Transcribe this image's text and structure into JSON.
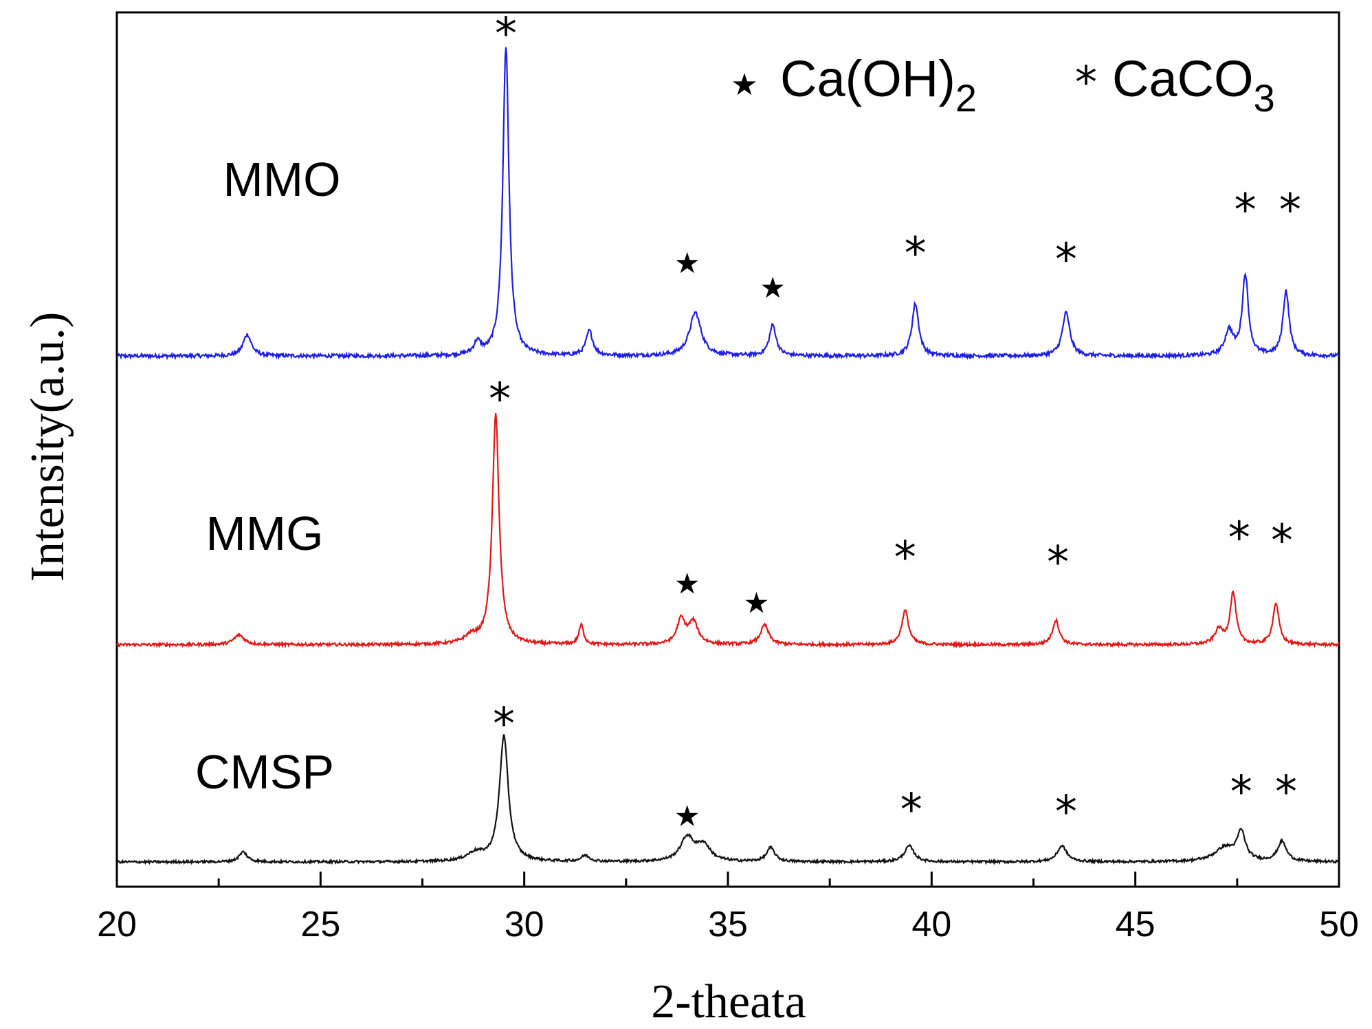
{
  "chart_data": {
    "type": "line",
    "title": "",
    "xlabel": "2-theata",
    "ylabel": "Intensity(a.u.)",
    "xlim": [
      20,
      50
    ],
    "xticks": [
      "20",
      "25",
      "30",
      "35",
      "40",
      "45",
      "50"
    ],
    "legend": [
      {
        "symbol": "★",
        "label": "Ca(OH)",
        "sub": "2",
        "name": "Ca(OH)2"
      },
      {
        "symbol": "*",
        "label": "CaCO",
        "sub": "3",
        "name": "CaCO3"
      }
    ],
    "series": [
      {
        "name": "MMO",
        "color": "#1f1fe0",
        "baseline": 0.0,
        "peaks": [
          {
            "x": 23.2,
            "h": 0.07,
            "w": 0.12
          },
          {
            "x": 28.85,
            "h": 0.04,
            "w": 0.1
          },
          {
            "x": 29.55,
            "h": 1.0,
            "w": 0.09
          },
          {
            "x": 31.6,
            "h": 0.08,
            "w": 0.1
          },
          {
            "x": 34.2,
            "h": 0.14,
            "w": 0.17
          },
          {
            "x": 36.1,
            "h": 0.1,
            "w": 0.1
          },
          {
            "x": 39.6,
            "h": 0.17,
            "w": 0.1
          },
          {
            "x": 43.3,
            "h": 0.14,
            "w": 0.11
          },
          {
            "x": 47.3,
            "h": 0.08,
            "w": 0.12
          },
          {
            "x": 47.7,
            "h": 0.26,
            "w": 0.09
          },
          {
            "x": 48.7,
            "h": 0.21,
            "w": 0.09
          }
        ],
        "markers": [
          {
            "x": 29.55,
            "type": "*",
            "level": 1.06
          },
          {
            "x": 34.0,
            "type": "★",
            "level": 0.3
          },
          {
            "x": 36.1,
            "type": "★",
            "level": 0.22
          },
          {
            "x": 39.6,
            "type": "*",
            "level": 0.35
          },
          {
            "x": 43.3,
            "type": "*",
            "level": 0.33
          },
          {
            "x": 47.7,
            "type": "*",
            "level": 0.49
          },
          {
            "x": 48.8,
            "type": "*",
            "level": 0.49
          }
        ]
      },
      {
        "name": "MMG",
        "color": "#e01818",
        "baseline": 0.0,
        "peaks": [
          {
            "x": 23.0,
            "h": 0.04,
            "w": 0.15
          },
          {
            "x": 28.7,
            "h": 0.03,
            "w": 0.2
          },
          {
            "x": 29.3,
            "h": 0.94,
            "w": 0.1
          },
          {
            "x": 31.4,
            "h": 0.08,
            "w": 0.07
          },
          {
            "x": 33.85,
            "h": 0.1,
            "w": 0.12
          },
          {
            "x": 34.15,
            "h": 0.09,
            "w": 0.14
          },
          {
            "x": 35.9,
            "h": 0.08,
            "w": 0.12
          },
          {
            "x": 39.35,
            "h": 0.14,
            "w": 0.1
          },
          {
            "x": 43.05,
            "h": 0.1,
            "w": 0.1
          },
          {
            "x": 47.05,
            "h": 0.06,
            "w": 0.12
          },
          {
            "x": 47.4,
            "h": 0.21,
            "w": 0.09
          },
          {
            "x": 48.45,
            "h": 0.17,
            "w": 0.09
          }
        ],
        "markers": [
          {
            "x": 29.4,
            "type": "*",
            "level": 1.03
          },
          {
            "x": 34.0,
            "type": "★",
            "level": 0.25
          },
          {
            "x": 35.7,
            "type": "★",
            "level": 0.17
          },
          {
            "x": 39.35,
            "type": "*",
            "level": 0.38
          },
          {
            "x": 43.1,
            "type": "*",
            "level": 0.36
          },
          {
            "x": 47.55,
            "type": "*",
            "level": 0.46
          },
          {
            "x": 48.6,
            "type": "*",
            "level": 0.45
          }
        ]
      },
      {
        "name": "CMSP",
        "color": "#111111",
        "baseline": 0.0,
        "peaks": [
          {
            "x": 23.1,
            "h": 0.05,
            "w": 0.12
          },
          {
            "x": 28.8,
            "h": 0.04,
            "w": 0.25
          },
          {
            "x": 29.5,
            "h": 0.63,
            "w": 0.13
          },
          {
            "x": 31.5,
            "h": 0.03,
            "w": 0.12
          },
          {
            "x": 34.0,
            "h": 0.12,
            "w": 0.2
          },
          {
            "x": 34.4,
            "h": 0.08,
            "w": 0.2
          },
          {
            "x": 36.05,
            "h": 0.07,
            "w": 0.12
          },
          {
            "x": 39.45,
            "h": 0.08,
            "w": 0.14
          },
          {
            "x": 43.2,
            "h": 0.08,
            "w": 0.14
          },
          {
            "x": 47.2,
            "h": 0.07,
            "w": 0.3
          },
          {
            "x": 47.6,
            "h": 0.14,
            "w": 0.12
          },
          {
            "x": 48.6,
            "h": 0.1,
            "w": 0.13
          }
        ],
        "markers": [
          {
            "x": 29.5,
            "type": "*",
            "level": 0.72
          },
          {
            "x": 34.0,
            "type": "★",
            "level": 0.23
          },
          {
            "x": 39.5,
            "type": "*",
            "level": 0.29
          },
          {
            "x": 43.3,
            "type": "*",
            "level": 0.28
          },
          {
            "x": 47.6,
            "type": "*",
            "level": 0.38
          },
          {
            "x": 48.7,
            "type": "*",
            "level": 0.38
          }
        ]
      }
    ]
  }
}
